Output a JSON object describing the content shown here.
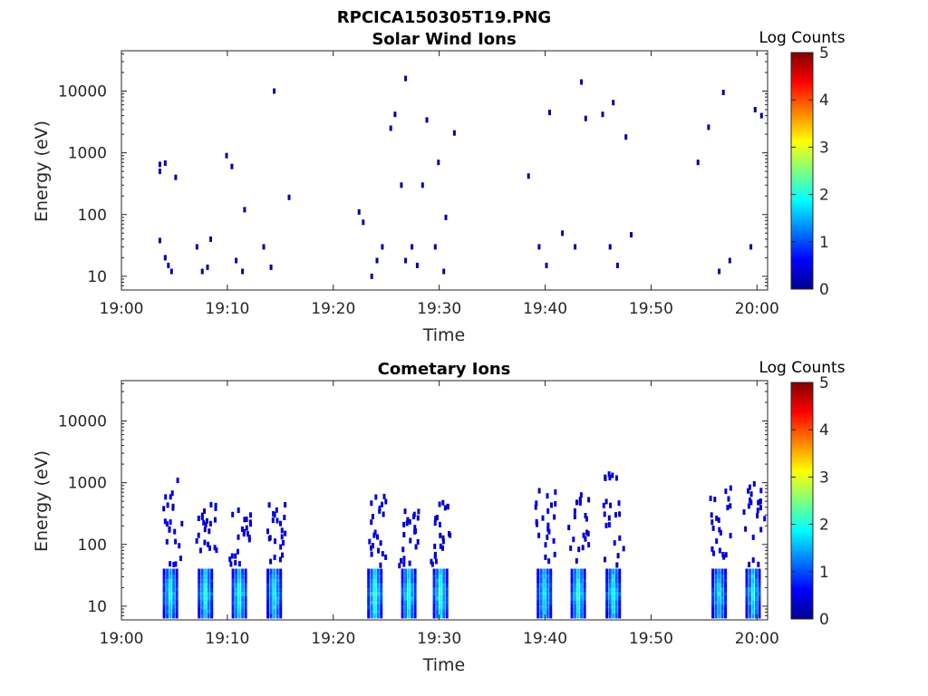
{
  "figure": {
    "filename": "RPCICA150305T19.PNG"
  },
  "colorbar": {
    "label": "Log Counts",
    "range": [
      0,
      5
    ],
    "ticks": [
      "0",
      "1",
      "2",
      "3",
      "4",
      "5"
    ],
    "colormap": "jet"
  },
  "chart_data": [
    {
      "type": "heatmap",
      "title": "Solar Wind Ions",
      "xlabel": "Time",
      "ylabel": "Energy (eV)",
      "yscale": "log",
      "xticks": [
        "19:00",
        "19:10",
        "19:20",
        "19:30",
        "19:40",
        "19:50",
        "20:00"
      ],
      "yticks": [
        "10",
        "100",
        "1000",
        "10000"
      ],
      "xlim": [
        "19:00",
        "20:01"
      ],
      "ylim": [
        6,
        45000
      ],
      "note": "sparse 1-count detections",
      "cells": [
        [
          "19:03.5",
          38,
          0.2
        ],
        [
          "19:03.5",
          500,
          0.2
        ],
        [
          "19:03.5",
          650,
          0.2
        ],
        [
          "19:04.0",
          680,
          0.2
        ],
        [
          "19:04.0",
          20,
          0.2
        ],
        [
          "19:04.3",
          15,
          0.2
        ],
        [
          "19:04.6",
          12,
          0.2
        ],
        [
          "19:05.0",
          400,
          0.2
        ],
        [
          "19:07.0",
          30,
          0.2
        ],
        [
          "19:07.5",
          12,
          0.2
        ],
        [
          "19:08.0",
          14,
          0.2
        ],
        [
          "19:08.3",
          40,
          0.2
        ],
        [
          "19:09.8",
          900,
          0.2
        ],
        [
          "19:10.3",
          600,
          0.2
        ],
        [
          "19:10.7",
          18,
          0.2
        ],
        [
          "19:11.3",
          12,
          0.2
        ],
        [
          "19:11.5",
          120,
          0.2
        ],
        [
          "19:13.3",
          30,
          0.2
        ],
        [
          "19:14.0",
          14,
          0.2
        ],
        [
          "19:14.3",
          10000,
          0.2
        ],
        [
          "19:15.7",
          190,
          0.2
        ],
        [
          "19:22.3",
          110,
          0.2
        ],
        [
          "19:22.7",
          75,
          0.2
        ],
        [
          "19:23.5",
          10,
          0.2
        ],
        [
          "19:24.0",
          18,
          0.2
        ],
        [
          "19:24.5",
          30,
          0.2
        ],
        [
          "19:25.3",
          2500,
          0.2
        ],
        [
          "19:25.7",
          4200,
          0.2
        ],
        [
          "19:26.3",
          300,
          0.2
        ],
        [
          "19:26.7",
          16000,
          0.2
        ],
        [
          "19:26.7",
          18,
          0.2
        ],
        [
          "19:27.3",
          30,
          0.2
        ],
        [
          "19:27.8",
          15,
          0.2
        ],
        [
          "19:28.3",
          300,
          0.2
        ],
        [
          "19:28.7",
          3400,
          0.2
        ],
        [
          "19:29.5",
          30,
          0.2
        ],
        [
          "19:29.8",
          700,
          0.2
        ],
        [
          "19:30.3",
          12,
          0.2
        ],
        [
          "19:30.5",
          90,
          0.2
        ],
        [
          "19:31.3",
          2100,
          0.2
        ],
        [
          "19:38.3",
          420,
          0.2
        ],
        [
          "19:39.3",
          30,
          0.2
        ],
        [
          "19:40.0",
          15,
          0.2
        ],
        [
          "19:40.3",
          4500,
          0.2
        ],
        [
          "19:41.5",
          50,
          0.2
        ],
        [
          "19:42.7",
          30,
          0.2
        ],
        [
          "19:43.3",
          14000,
          0.2
        ],
        [
          "19:43.7",
          3600,
          0.2
        ],
        [
          "19:45.3",
          4200,
          0.2
        ],
        [
          "19:46.0",
          30,
          0.2
        ],
        [
          "19:46.3",
          6500,
          0.2
        ],
        [
          "19:46.7",
          15,
          0.2
        ],
        [
          "19:47.5",
          1800,
          0.2
        ],
        [
          "19:48.0",
          47,
          0.2
        ],
        [
          "19:54.3",
          700,
          0.2
        ],
        [
          "19:55.3",
          2600,
          0.2
        ],
        [
          "19:56.3",
          12,
          0.2
        ],
        [
          "19:56.7",
          9500,
          0.2
        ],
        [
          "19:57.3",
          18,
          0.2
        ],
        [
          "19:59.3",
          30,
          0.2
        ],
        [
          "19:59.7",
          5000,
          0.2
        ],
        [
          "20:00.3",
          4000,
          0.2
        ]
      ]
    },
    {
      "type": "heatmap",
      "title": "Cometary Ions",
      "xlabel": "Time",
      "ylabel": "Energy (eV)",
      "yscale": "log",
      "xticks": [
        "19:00",
        "19:10",
        "19:20",
        "19:30",
        "19:40",
        "19:50",
        "20:00"
      ],
      "yticks": [
        "10",
        "100",
        "1000",
        "10000"
      ],
      "xlim": [
        "19:00",
        "20:01"
      ],
      "ylim": [
        6,
        45000
      ],
      "bursts": [
        {
          "t": "19:04.5",
          "peak_log_counts": 1.8,
          "top_eV": 1100
        },
        {
          "t": "19:07.8",
          "peak_log_counts": 1.9,
          "top_eV": 450
        },
        {
          "t": "19:11.0",
          "peak_log_counts": 1.9,
          "top_eV": 500
        },
        {
          "t": "19:14.3",
          "peak_log_counts": 1.8,
          "top_eV": 480
        },
        {
          "t": "19:23.8",
          "peak_log_counts": 2.0,
          "top_eV": 600
        },
        {
          "t": "19:27.0",
          "peak_log_counts": 1.9,
          "top_eV": 500
        },
        {
          "t": "19:30.0",
          "peak_log_counts": 2.0,
          "top_eV": 500
        },
        {
          "t": "19:39.8",
          "peak_log_counts": 1.8,
          "top_eV": 800
        },
        {
          "t": "19:43.0",
          "peak_log_counts": 1.9,
          "top_eV": 700
        },
        {
          "t": "19:46.3",
          "peak_log_counts": 1.8,
          "top_eV": 1600
        },
        {
          "t": "19:56.3",
          "peak_log_counts": 1.7,
          "top_eV": 900
        },
        {
          "t": "19:59.5",
          "peak_log_counts": 1.8,
          "top_eV": 1000
        }
      ]
    }
  ]
}
